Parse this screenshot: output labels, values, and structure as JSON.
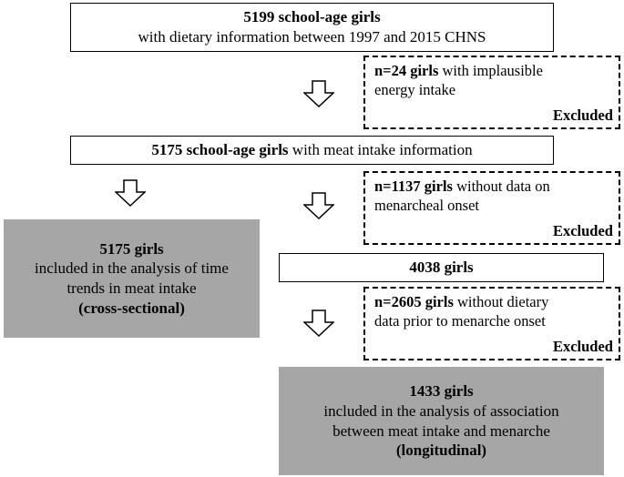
{
  "box1": {
    "bold": "5199 school-age girls",
    "line2": "with dietary information between 1997 and 2015 CHNS"
  },
  "excl1": {
    "bold": "n=24 girls",
    "rest": " with implausible",
    "line2": "energy intake",
    "excluded": "Excluded"
  },
  "box2": {
    "bold": "5175 school-age girls",
    "rest": " with meat intake information"
  },
  "excl2": {
    "bold": "n=1137 girls",
    "rest": " without data on",
    "line2": "menarcheal onset",
    "excluded": "Excluded"
  },
  "gray1": {
    "line1": "5175 girls",
    "line2": "included in the analysis of time",
    "line3": "trends in meat intake",
    "line4": "(cross-sectional)"
  },
  "box3": {
    "bold": "4038 girls"
  },
  "excl3": {
    "bold": "n=2605 girls",
    "rest": " without dietary",
    "line2": "data prior to menarche onset",
    "excluded": "Excluded"
  },
  "gray2": {
    "line1": "1433 girls",
    "line2": "included in the analysis of association",
    "line3": "between meat intake and menarche",
    "line4": "(longitudinal)"
  }
}
